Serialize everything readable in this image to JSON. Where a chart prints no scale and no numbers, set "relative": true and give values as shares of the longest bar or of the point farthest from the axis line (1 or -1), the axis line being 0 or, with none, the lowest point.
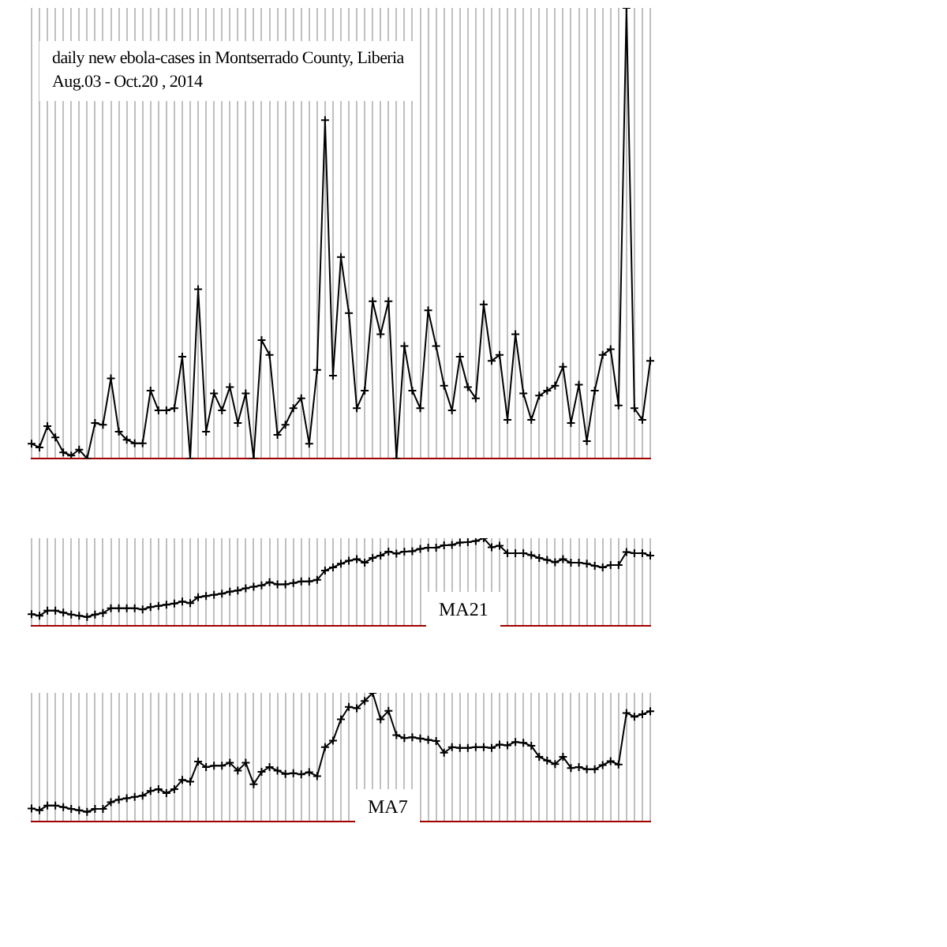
{
  "chart_data": [
    {
      "type": "line",
      "title": "daily new ebola-cases in Montserrado County, Liberia",
      "subtitle": "Aug.03 - Oct.20 , 2014",
      "relative": true,
      "grid": "x",
      "marker": "cross",
      "categories": [
        null,
        null,
        null,
        null,
        null,
        null,
        null,
        null,
        null,
        null,
        null,
        null,
        null,
        null,
        null,
        null,
        null,
        null,
        null,
        null,
        null,
        null,
        null,
        null,
        null,
        null,
        null,
        null,
        null,
        null,
        null,
        null,
        null,
        null,
        null,
        null,
        null,
        null,
        null,
        null,
        null,
        null,
        null,
        null,
        null,
        null,
        null,
        null,
        null,
        null,
        null,
        null,
        null,
        null,
        null,
        null,
        null,
        null,
        null,
        null,
        null,
        null,
        null,
        null,
        null,
        null,
        null,
        null,
        null,
        null,
        null,
        null,
        null,
        null,
        null,
        null,
        null,
        null,
        null
      ],
      "series": [
        {
          "color": "#000000",
          "values": [
            0.033,
            0.025,
            0.072,
            0.047,
            0.014,
            0.007,
            0.02,
            0,
            0.079,
            0.075,
            0.178,
            0.06,
            0.042,
            0.034,
            0.034,
            0.151,
            0.107,
            0.107,
            0.112,
            0.226,
            0,
            0.376,
            0.06,
            0.145,
            0.107,
            0.159,
            0.079,
            0.145,
            0,
            0.263,
            0.23,
            0.053,
            0.075,
            0.112,
            0.134,
            0.033,
            0.197,
            0.751,
            0.184,
            0.447,
            0.323,
            0.112,
            0.151,
            0.349,
            0.276,
            0.349,
            0,
            0.25,
            0.151,
            0.112,
            0.329,
            0.25,
            0.162,
            0.107,
            0.226,
            0.159,
            0.134,
            0.342,
            0.217,
            0.23,
            0.086,
            0.276,
            0.145,
            0.086,
            0.14,
            0.151,
            0.162,
            0.204,
            0.079,
            0.164,
            0.039,
            0.151,
            0.23,
            0.243,
            0.118,
            1,
            0.112,
            0.086,
            0.217
          ]
        }
      ]
    },
    {
      "type": "line",
      "relative": true,
      "grid": "x",
      "marker": "cross",
      "annotations": [
        "MA21"
      ],
      "categories": [
        null,
        null,
        null,
        null,
        null,
        null,
        null,
        null,
        null,
        null,
        null,
        null,
        null,
        null,
        null,
        null,
        null,
        null,
        null,
        null,
        null,
        null,
        null,
        null,
        null,
        null,
        null,
        null,
        null,
        null,
        null,
        null,
        null,
        null,
        null,
        null,
        null,
        null,
        null,
        null,
        null,
        null,
        null,
        null,
        null,
        null,
        null,
        null,
        null,
        null,
        null,
        null,
        null,
        null,
        null,
        null,
        null,
        null,
        null,
        null,
        null,
        null,
        null,
        null,
        null,
        null,
        null,
        null,
        null,
        null,
        null,
        null,
        null,
        null,
        null,
        null,
        null,
        null,
        null
      ],
      "series": [
        {
          "color": "#000000",
          "values": [
            0.135,
            0.117,
            0.175,
            0.175,
            0.152,
            0.13,
            0.117,
            0.103,
            0.13,
            0.148,
            0.202,
            0.202,
            0.202,
            0.202,
            0.188,
            0.215,
            0.229,
            0.242,
            0.256,
            0.278,
            0.26,
            0.327,
            0.341,
            0.354,
            0.368,
            0.39,
            0.404,
            0.43,
            0.448,
            0.462,
            0.498,
            0.475,
            0.475,
            0.489,
            0.507,
            0.507,
            0.525,
            0.632,
            0.668,
            0.709,
            0.744,
            0.762,
            0.722,
            0.776,
            0.803,
            0.848,
            0.825,
            0.848,
            0.852,
            0.879,
            0.892,
            0.892,
            0.919,
            0.924,
            0.951,
            0.955,
            0.969,
            1,
            0.897,
            0.915,
            0.83,
            0.83,
            0.83,
            0.807,
            0.776,
            0.753,
            0.726,
            0.762,
            0.722,
            0.722,
            0.709,
            0.686,
            0.668,
            0.695,
            0.695,
            0.843,
            0.83,
            0.83,
            0.803
          ]
        }
      ]
    },
    {
      "type": "line",
      "relative": true,
      "grid": "x",
      "marker": "cross",
      "annotations": [
        "MA7"
      ],
      "categories": [
        null,
        null,
        null,
        null,
        null,
        null,
        null,
        null,
        null,
        null,
        null,
        null,
        null,
        null,
        null,
        null,
        null,
        null,
        null,
        null,
        null,
        null,
        null,
        null,
        null,
        null,
        null,
        null,
        null,
        null,
        null,
        null,
        null,
        null,
        null,
        null,
        null,
        null,
        null,
        null,
        null,
        null,
        null,
        null,
        null,
        null,
        null,
        null,
        null,
        null,
        null,
        null,
        null,
        null,
        null,
        null,
        null,
        null,
        null,
        null,
        null,
        null,
        null,
        null,
        null,
        null,
        null,
        null,
        null,
        null,
        null,
        null,
        null,
        null,
        null,
        null,
        null,
        null,
        null
      ],
      "series": [
        {
          "color": "#000000",
          "values": [
            0.103,
            0.089,
            0.126,
            0.126,
            0.113,
            0.099,
            0.089,
            0.076,
            0.099,
            0.099,
            0.152,
            0.172,
            0.182,
            0.192,
            0.202,
            0.238,
            0.252,
            0.222,
            0.252,
            0.325,
            0.311,
            0.467,
            0.424,
            0.434,
            0.434,
            0.457,
            0.397,
            0.457,
            0.291,
            0.387,
            0.424,
            0.397,
            0.371,
            0.377,
            0.368,
            0.384,
            0.354,
            0.579,
            0.629,
            0.795,
            0.891,
            0.881,
            0.937,
            1,
            0.795,
            0.861,
            0.672,
            0.649,
            0.656,
            0.646,
            0.636,
            0.626,
            0.536,
            0.579,
            0.573,
            0.573,
            0.579,
            0.579,
            0.573,
            0.599,
            0.593,
            0.619,
            0.613,
            0.589,
            0.503,
            0.474,
            0.447,
            0.503,
            0.417,
            0.424,
            0.407,
            0.407,
            0.44,
            0.47,
            0.444,
            0.844,
            0.815,
            0.834,
            0.858
          ]
        }
      ]
    }
  ]
}
